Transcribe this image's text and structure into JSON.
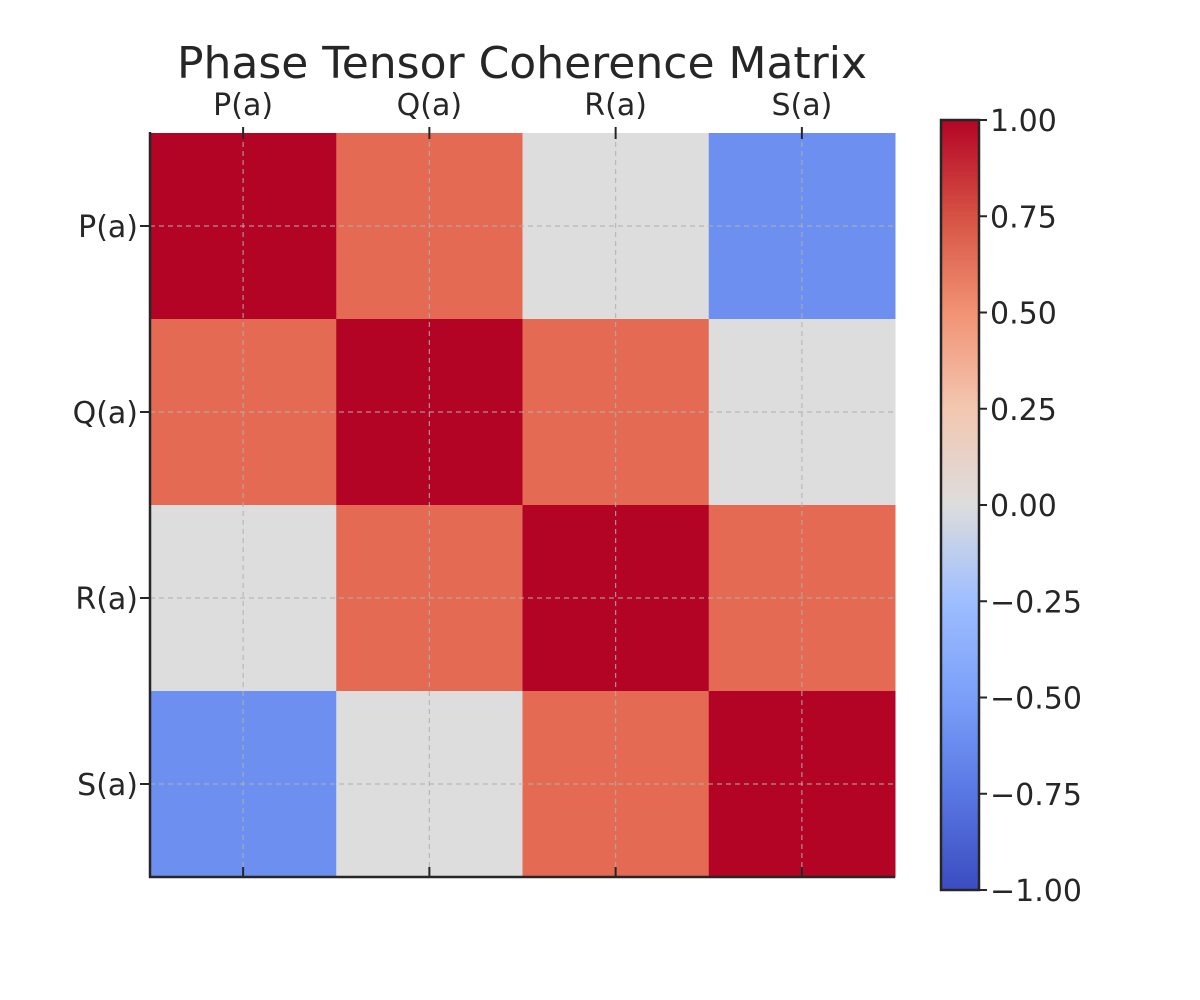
{
  "chart_data": {
    "type": "heatmap",
    "title": "Phase Tensor Coherence Matrix",
    "x_categories": [
      "P(a)",
      "Q(a)",
      "R(a)",
      "S(a)"
    ],
    "y_categories": [
      "P(a)",
      "Q(a)",
      "R(a)",
      "S(a)"
    ],
    "values": [
      [
        1.0,
        0.6,
        0.0,
        -0.6
      ],
      [
        0.6,
        1.0,
        0.6,
        0.0
      ],
      [
        0.0,
        0.6,
        1.0,
        0.6
      ],
      [
        -0.6,
        0.0,
        0.6,
        1.0
      ]
    ],
    "colorbar": {
      "min": -1.0,
      "max": 1.0,
      "ticks": [
        1.0,
        0.75,
        0.5,
        0.25,
        0.0,
        -0.25,
        -0.5,
        -0.75,
        -1.0
      ],
      "tick_labels": [
        "1.00",
        "0.75",
        "0.50",
        "0.25",
        "0.00",
        "−0.25",
        "−0.50",
        "−0.75",
        "−1.00"
      ],
      "colormap": "coolwarm"
    },
    "grid": true,
    "x_axis_position": "top"
  }
}
